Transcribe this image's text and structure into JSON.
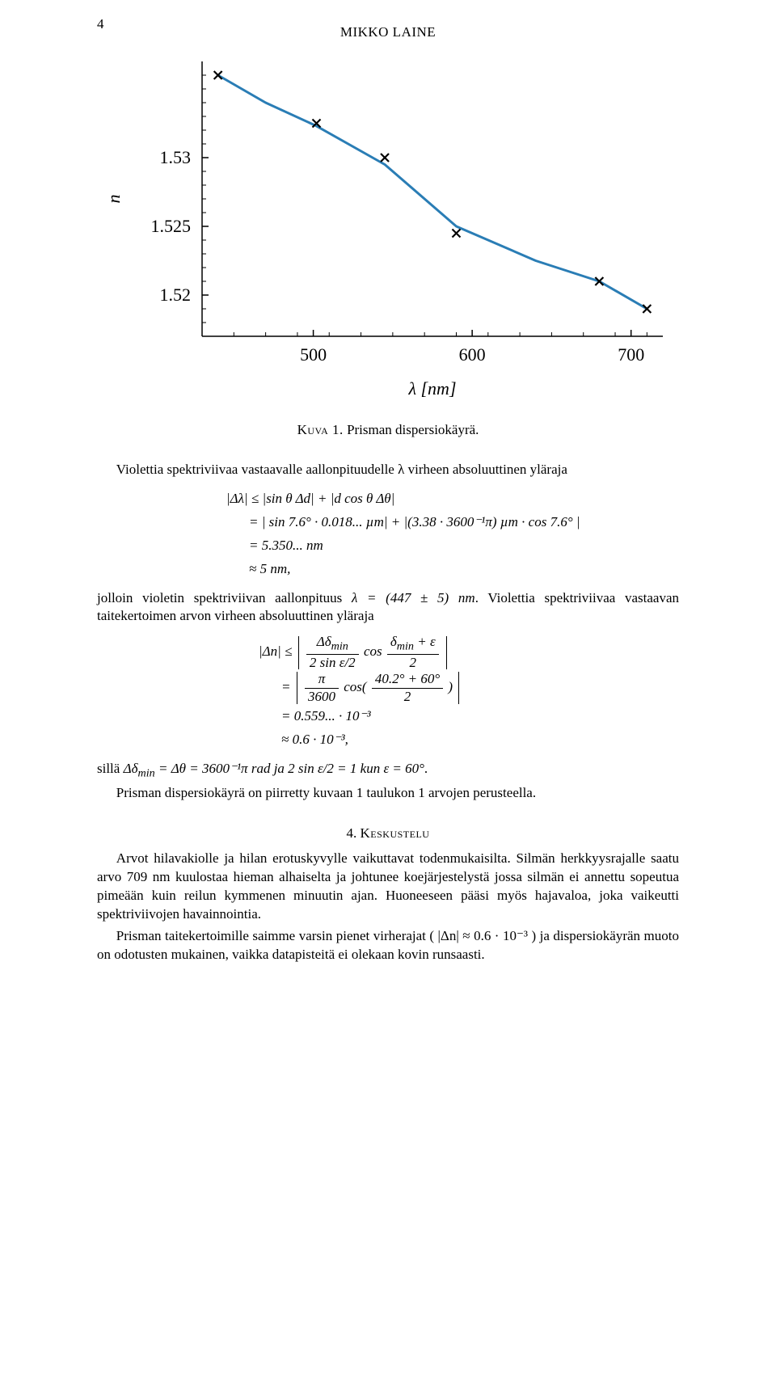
{
  "page_number": "4",
  "header_author": "MIKKO LAINE",
  "chart": {
    "type": "line-scatter",
    "x_label": "λ [nm]",
    "y_label": "n",
    "xlim": [
      430,
      720
    ],
    "ylim": [
      1.517,
      1.537
    ],
    "xticks": [
      500,
      600,
      700
    ],
    "yticks": [
      1.52,
      1.525,
      1.53
    ],
    "ytick_labels": [
      "1.52",
      "1.525",
      "1.53"
    ],
    "axis_color": "#000000",
    "tick_color": "#000000",
    "line_color": "#2a7db5",
    "line_width": 3,
    "marker_color": "#000000",
    "marker_style": "x",
    "marker_size": 10,
    "background_color": "#ffffff",
    "label_fontsize": 22,
    "tick_fontsize": 22,
    "data_points": [
      {
        "x": 440,
        "y": 1.536
      },
      {
        "x": 502,
        "y": 1.5325
      },
      {
        "x": 545,
        "y": 1.53
      },
      {
        "x": 590,
        "y": 1.5245
      },
      {
        "x": 680,
        "y": 1.521
      },
      {
        "x": 710,
        "y": 1.519
      }
    ],
    "curve_points": [
      {
        "x": 440,
        "y": 1.536
      },
      {
        "x": 470,
        "y": 1.534
      },
      {
        "x": 502,
        "y": 1.5323
      },
      {
        "x": 545,
        "y": 1.5295
      },
      {
        "x": 590,
        "y": 1.525
      },
      {
        "x": 640,
        "y": 1.5225
      },
      {
        "x": 680,
        "y": 1.521
      },
      {
        "x": 710,
        "y": 1.519
      }
    ]
  },
  "caption_label": "Kuva 1.",
  "caption_text": "Prisman dispersiokäyrä.",
  "para1": "Violettia spektriviivaa vastaavalle aallonpituudelle λ virheen absoluuttinen yläraja",
  "eq1_line1_lhs": "|Δλ| ≤ |sin θ Δd| + |d cos θ Δθ|",
  "eq1_line2": "= | sin 7.6° · 0.018... µm| + |(3.38 · 3600⁻¹π) µm · cos 7.6° |",
  "eq1_line3": "= 5.350... nm",
  "eq1_line4": "≈ 5 nm,",
  "para2_a": "jolloin violetin spektriviivan aallonpituus ",
  "para2_math": "λ = (447 ± 5) nm",
  "para2_b": ". Violettia spektriviivaa vastaavan taitekertoimen arvon virheen absoluuttinen yläraja",
  "eq2": {
    "lhs": "|Δn| ≤ ",
    "frac1_num": "Δδ<sub>min</sub>",
    "frac1_den": "2 sin ε/2",
    "mid1": " cos ",
    "frac2_num": "δ<sub>min</sub> + ε",
    "frac2_den": "2",
    "line2_eq": "= ",
    "frac3_num": "π",
    "frac3_den": "3600",
    "mid2": " cos(",
    "frac4_num": "40.2° + 60°",
    "frac4_den": "2",
    "mid3": ")",
    "line3": "= 0.559... · 10⁻³",
    "line4": "≈ 0.6 · 10⁻³,"
  },
  "para3_a": "sillä ",
  "para3_math1": "Δδ",
  "para3_math1_sub": "min",
  "para3_math2": " = Δθ = 3600⁻¹π rad ja 2 sin ε/2 = 1 kun ε = 60°",
  "para3_b": ".",
  "para4": "Prisman dispersiokäyrä on piirretty kuvaan 1 taulukon 1 arvojen perusteella.",
  "section4_num": "4.",
  "section4_title": "Keskustelu",
  "para5": "Arvot hilavakiolle ja hilan erotuskyvylle vaikuttavat todenmukaisilta. Silmän herkkyysrajalle saatu arvo 709 nm kuulostaa hieman alhaiselta ja johtunee koejärjestelystä jossa silmän ei annettu sopeutua pimeään kuin reilun kymmenen minuutin ajan. Huoneeseen pääsi myös hajavaloa, joka vaikeutti spektriviivojen havainnointia.",
  "para6": "Prisman taitekertoimille saimme varsin pienet virherajat ( |Δn| ≈ 0.6 · 10⁻³ ) ja dispersiokäyrän muoto on odotusten mukainen, vaikka datapisteitä ei olekaan kovin runsaasti."
}
